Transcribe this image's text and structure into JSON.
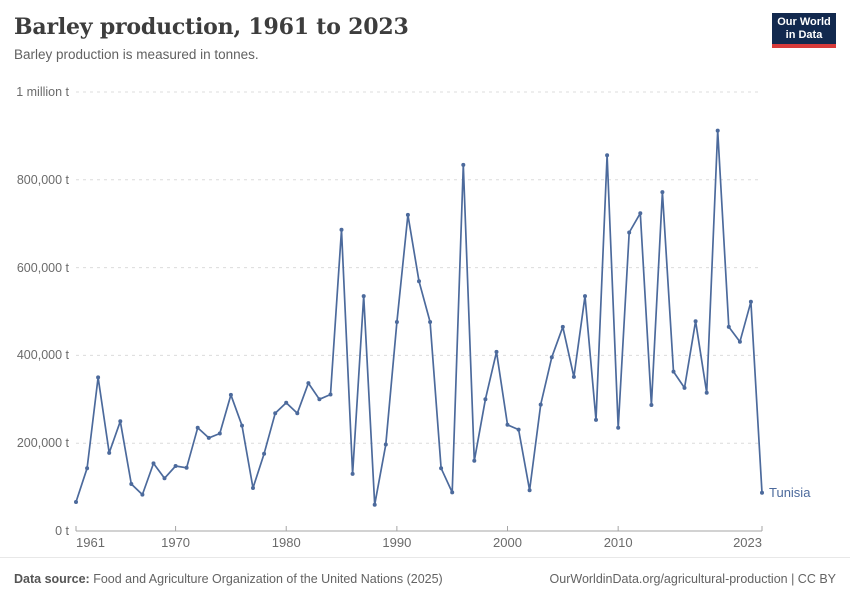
{
  "header": {
    "title": "Barley production, 1961 to 2023",
    "subtitle": "Barley production is measured in tonnes."
  },
  "logo": {
    "line1": "Our World",
    "line2": "in Data"
  },
  "colors": {
    "series_line": "#4C6A9C",
    "gridline": "#dcdcdc",
    "axis": "#a5a5a5",
    "logo_bg": "#12294e",
    "logo_accent": "#d73a3a"
  },
  "chart_data": {
    "type": "line",
    "title": "Barley production, 1961 to 2023",
    "subtitle": "Barley production is measured in tonnes.",
    "xlabel": "",
    "ylabel": "tonnes",
    "xlim": [
      1961,
      2023
    ],
    "ylim": [
      0,
      1000000
    ],
    "grid": "horizontal-dashed",
    "legend_position": "end-of-line-label",
    "x_ticks": [
      1961,
      1970,
      1980,
      1990,
      2000,
      2010,
      2023
    ],
    "y_ticks": [
      {
        "value": 1000000,
        "label": "1 million t"
      },
      {
        "value": 800000,
        "label": "800,000 t"
      },
      {
        "value": 600000,
        "label": "600,000 t"
      },
      {
        "value": 400000,
        "label": "400,000 t"
      },
      {
        "value": 200000,
        "label": "200,000 t"
      },
      {
        "value": 0,
        "label": "0 t"
      }
    ],
    "series": [
      {
        "name": "Tunisia",
        "color": "#4C6A9C",
        "years": [
          1961,
          1962,
          1963,
          1964,
          1965,
          1966,
          1967,
          1968,
          1969,
          1970,
          1971,
          1972,
          1973,
          1974,
          1975,
          1976,
          1977,
          1978,
          1979,
          1980,
          1981,
          1982,
          1983,
          1984,
          1985,
          1986,
          1987,
          1988,
          1989,
          1990,
          1991,
          1992,
          1993,
          1994,
          1995,
          1996,
          1997,
          1998,
          1999,
          2000,
          2001,
          2002,
          2003,
          2004,
          2005,
          2006,
          2007,
          2008,
          2009,
          2010,
          2011,
          2012,
          2013,
          2014,
          2015,
          2016,
          2017,
          2018,
          2019,
          2020,
          2021,
          2022,
          2023
        ],
        "values": [
          66000,
          143000,
          350000,
          178000,
          250000,
          107000,
          83000,
          154000,
          120000,
          148000,
          144000,
          235000,
          212000,
          222000,
          310000,
          240000,
          98000,
          176000,
          268000,
          292000,
          268000,
          337000,
          300000,
          311000,
          686000,
          130000,
          535000,
          60000,
          197000,
          476000,
          720000,
          569000,
          476000,
          143000,
          88000,
          834000,
          160000,
          300000,
          408000,
          242000,
          231000,
          93000,
          288000,
          396000,
          465000,
          351000,
          535000,
          253000,
          856000,
          235000,
          680000,
          724000,
          287000,
          772000,
          363000,
          326000,
          478000,
          315000,
          912000,
          465000,
          431000,
          522000,
          87000
        ]
      }
    ]
  },
  "footer": {
    "source_label": "Data source:",
    "source_text": " Food and Agriculture Organization of the United Nations (2025)",
    "link_text": "OurWorldinData.org/agricultural-production | CC BY"
  }
}
